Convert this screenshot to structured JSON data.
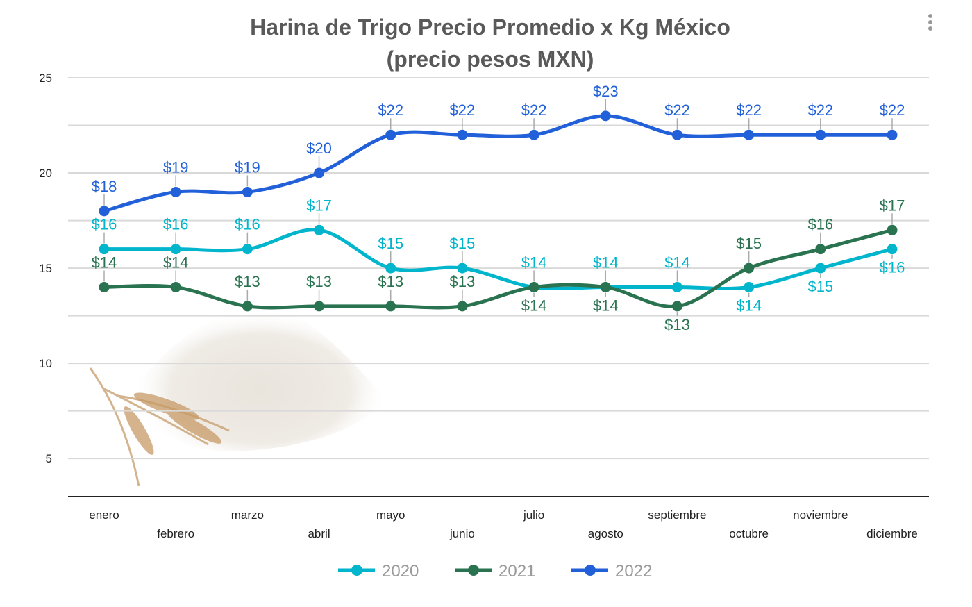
{
  "chart_data": {
    "type": "line",
    "title": "Harina de Trigo Precio Promedio x Kg México\n(precio pesos MXN)",
    "title_lines": [
      "Harina de Trigo Precio Promedio x Kg México",
      "(precio pesos MXN)"
    ],
    "categories": [
      "enero",
      "febrero",
      "marzo",
      "abril",
      "mayo",
      "junio",
      "julio",
      "agosto",
      "septiembre",
      "octubre",
      "noviembre",
      "diciembre"
    ],
    "ylim": [
      3,
      25
    ],
    "yticks": [
      5,
      10,
      15,
      20,
      25
    ],
    "grid": true,
    "smooth": true,
    "legend": "bottom",
    "data_label_prefix": "$",
    "series": [
      {
        "name": "2020",
        "color": "#00B5CC",
        "values": [
          16,
          16,
          16,
          17,
          15,
          15,
          14,
          14,
          14,
          14,
          15,
          16
        ]
      },
      {
        "name": "2021",
        "color": "#2A7350",
        "values": [
          14,
          14,
          13,
          13,
          13,
          13,
          14,
          14,
          13,
          15,
          16,
          17
        ]
      },
      {
        "name": "2022",
        "color": "#2160D8",
        "values": [
          18,
          19,
          19,
          20,
          22,
          22,
          22,
          23,
          22,
          22,
          22,
          22
        ]
      }
    ]
  },
  "menu_icon": "vertical-ellipsis-icon",
  "background_image": "wheat-flour-pile"
}
